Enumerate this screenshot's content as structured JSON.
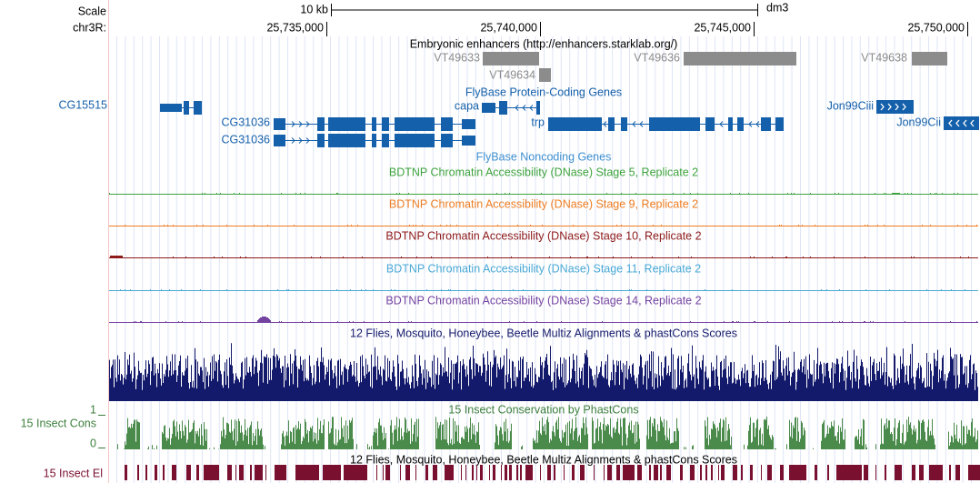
{
  "ruler": {
    "scale_label": "Scale",
    "scale_bar": "10 kb",
    "assembly": "dm3",
    "chrom_label": "chr3R:",
    "ticks": [
      "25,735,000",
      "25,740,000",
      "25,745,000",
      "25,750,000"
    ]
  },
  "enhancers": {
    "title": "Embryonic enhancers (http://enhancers.starklab.org/)",
    "items": [
      "VT49633",
      "VT49634",
      "VT49636",
      "VT49638"
    ]
  },
  "genes": {
    "title": "FlyBase Protein-Coding Genes",
    "left_label": "CG15515",
    "items": [
      "capa",
      "Jon99Ciii",
      "CG31036",
      "trp",
      "Jon99Cii",
      "CG31036"
    ],
    "noncoding_title": "FlyBase Noncoding Genes"
  },
  "dnase_tracks": [
    "BDTNP Chromatin Accessibility (DNase) Stage 5, Replicate 2",
    "BDTNP Chromatin Accessibility (DNase) Stage 9, Replicate 2",
    "BDTNP Chromatin Accessibility (DNase) Stage 10, Replicate 2",
    "BDTNP Chromatin Accessibility (DNase) Stage 11, Replicate 2",
    "BDTNP Chromatin Accessibility (DNase) Stage 14, Replicate 2"
  ],
  "conservation": {
    "multiz_title": "12 Flies, Mosquito, Honeybee, Beetle Multiz Alignments & phastCons Scores",
    "phastcons_title": "15 Insect Conservation by PhastCons",
    "phastcons_label": "15 Insect Cons",
    "axis_top": "1",
    "axis_bottom": "0",
    "elements_title": "12 Flies, Mosquito, Honeybee, Beetle Multiz Alignments & phastCons Scores",
    "elements_label": "15 Insect El"
  }
}
